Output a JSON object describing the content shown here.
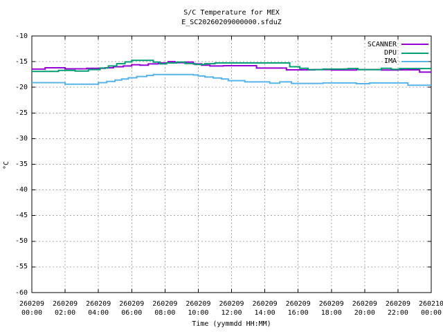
{
  "chart_data": {
    "type": "line",
    "title": "S/C Temperature for MEX",
    "subtitle": "E_SC20260209000000.sfduZ",
    "xlabel": "Time (yymmdd HH:MM)",
    "ylabel": "°C",
    "xlim": [
      0,
      24
    ],
    "ylim": [
      -60,
      -10
    ],
    "grid": true,
    "grid_color": "#a8a8a8",
    "axis_color": "#000000",
    "legend_position": "top-right-inside",
    "y_ticks": [
      -60,
      -55,
      -50,
      -45,
      -40,
      -35,
      -30,
      -25,
      -20,
      -15,
      -10
    ],
    "x_ticks": [
      {
        "hour": 0,
        "line1": "260209",
        "line2": "00:00"
      },
      {
        "hour": 2,
        "line1": "260209",
        "line2": "02:00"
      },
      {
        "hour": 4,
        "line1": "260209",
        "line2": "04:00"
      },
      {
        "hour": 6,
        "line1": "260209",
        "line2": "06:00"
      },
      {
        "hour": 8,
        "line1": "260209",
        "line2": "08:00"
      },
      {
        "hour": 10,
        "line1": "260209",
        "line2": "10:00"
      },
      {
        "hour": 12,
        "line1": "260209",
        "line2": "12:00"
      },
      {
        "hour": 14,
        "line1": "260209",
        "line2": "14:00"
      },
      {
        "hour": 16,
        "line1": "260209",
        "line2": "16:00"
      },
      {
        "hour": 18,
        "line1": "260209",
        "line2": "18:00"
      },
      {
        "hour": 20,
        "line1": "260209",
        "line2": "20:00"
      },
      {
        "hour": 22,
        "line1": "260209",
        "line2": "22:00"
      },
      {
        "hour": 24,
        "line1": "260210",
        "line2": "00:00"
      }
    ],
    "series": [
      {
        "name": "SCANNER",
        "color": "#9400d3",
        "step": true,
        "points": [
          [
            0,
            -16.45
          ],
          [
            0.8,
            -16.2
          ],
          [
            2.0,
            -16.4
          ],
          [
            3.3,
            -16.3
          ],
          [
            4.4,
            -16.2
          ],
          [
            4.9,
            -16.0
          ],
          [
            5.5,
            -15.85
          ],
          [
            6.0,
            -15.6
          ],
          [
            6.5,
            -15.7
          ],
          [
            7.0,
            -15.45
          ],
          [
            7.6,
            -15.25
          ],
          [
            8.2,
            -15.0
          ],
          [
            8.6,
            -15.2
          ],
          [
            9.2,
            -15.1
          ],
          [
            9.7,
            -15.45
          ],
          [
            10.2,
            -15.7
          ],
          [
            10.7,
            -15.85
          ],
          [
            11.5,
            -15.8
          ],
          [
            13.5,
            -16.25
          ],
          [
            15.3,
            -16.6
          ],
          [
            17.0,
            -16.55
          ],
          [
            18.0,
            -16.65
          ],
          [
            19.5,
            -16.55
          ],
          [
            21.0,
            -16.65
          ],
          [
            22.0,
            -16.6
          ],
          [
            23.3,
            -17.05
          ],
          [
            24,
            -17.05
          ]
        ]
      },
      {
        "name": "DPU",
        "color": "#009e73",
        "step": true,
        "points": [
          [
            0,
            -16.9
          ],
          [
            1.6,
            -16.7
          ],
          [
            2.6,
            -16.85
          ],
          [
            3.4,
            -16.55
          ],
          [
            4.1,
            -16.25
          ],
          [
            4.6,
            -15.85
          ],
          [
            5.1,
            -15.4
          ],
          [
            5.6,
            -15.05
          ],
          [
            6.0,
            -14.75
          ],
          [
            7.3,
            -15.1
          ],
          [
            7.7,
            -15.45
          ],
          [
            8.1,
            -15.25
          ],
          [
            8.7,
            -15.1
          ],
          [
            9.2,
            -15.35
          ],
          [
            9.8,
            -15.55
          ],
          [
            10.4,
            -15.4
          ],
          [
            11.0,
            -15.25
          ],
          [
            15.5,
            -16.0
          ],
          [
            16.1,
            -16.3
          ],
          [
            16.6,
            -16.55
          ],
          [
            17.5,
            -16.45
          ],
          [
            19.0,
            -16.35
          ],
          [
            19.6,
            -16.55
          ],
          [
            21.0,
            -16.3
          ],
          [
            21.6,
            -16.5
          ],
          [
            22.1,
            -16.35
          ],
          [
            24,
            -16.35
          ]
        ]
      },
      {
        "name": "IMA",
        "color": "#56b4e9",
        "step": true,
        "points": [
          [
            0,
            -19.1
          ],
          [
            2.0,
            -19.4
          ],
          [
            4.0,
            -19.1
          ],
          [
            4.5,
            -18.85
          ],
          [
            5.0,
            -18.6
          ],
          [
            5.4,
            -18.4
          ],
          [
            5.8,
            -18.15
          ],
          [
            6.3,
            -17.9
          ],
          [
            6.9,
            -17.7
          ],
          [
            7.3,
            -17.5
          ],
          [
            9.7,
            -17.6
          ],
          [
            10.0,
            -17.8
          ],
          [
            10.4,
            -18.0
          ],
          [
            10.9,
            -18.2
          ],
          [
            11.4,
            -18.4
          ],
          [
            11.8,
            -18.7
          ],
          [
            12.8,
            -18.95
          ],
          [
            14.3,
            -19.2
          ],
          [
            14.9,
            -18.95
          ],
          [
            15.6,
            -19.25
          ],
          [
            17.5,
            -19.15
          ],
          [
            19.5,
            -19.3
          ],
          [
            20.3,
            -19.15
          ],
          [
            22.6,
            -19.6
          ],
          [
            24,
            -19.6
          ]
        ]
      }
    ]
  }
}
